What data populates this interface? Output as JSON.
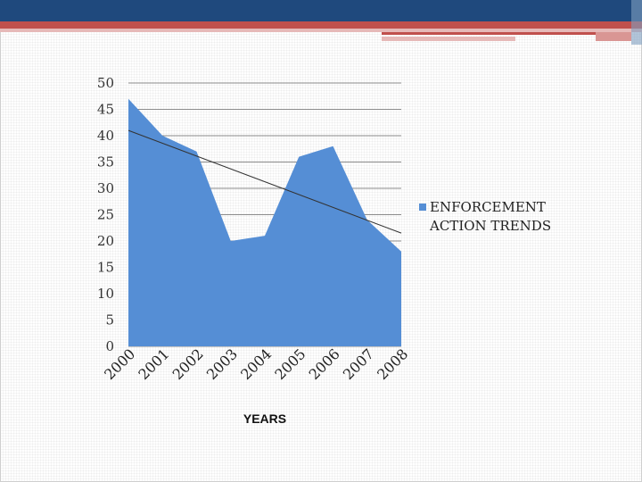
{
  "chart_data": {
    "type": "area",
    "title": "",
    "xlabel": "YEARS",
    "ylabel": "",
    "categories": [
      "2000",
      "2001",
      "2002",
      "2003",
      "2004",
      "2005",
      "2006",
      "2007",
      "2008"
    ],
    "series": [
      {
        "name": "ENFORCEMENT ACTION TRENDS",
        "values": [
          47,
          40,
          37,
          20,
          21,
          36,
          38,
          24,
          18
        ],
        "color": "#558ed5"
      }
    ],
    "trendline": {
      "type": "linear",
      "start": 41,
      "end": 21.5,
      "color": "#333333"
    },
    "ylim": [
      0,
      50
    ],
    "yticks": [
      "0",
      "5",
      "10",
      "15",
      "20",
      "25",
      "30",
      "35",
      "40",
      "45",
      "50"
    ],
    "grid": true,
    "legend": {
      "position": "right",
      "lines": [
        "ENFORCEMENT",
        "ACTION TRENDS"
      ]
    }
  },
  "theme": {
    "header_blue": "#1f497d",
    "header_red": "#c0504d",
    "header_pink": "#e6b9b8"
  }
}
